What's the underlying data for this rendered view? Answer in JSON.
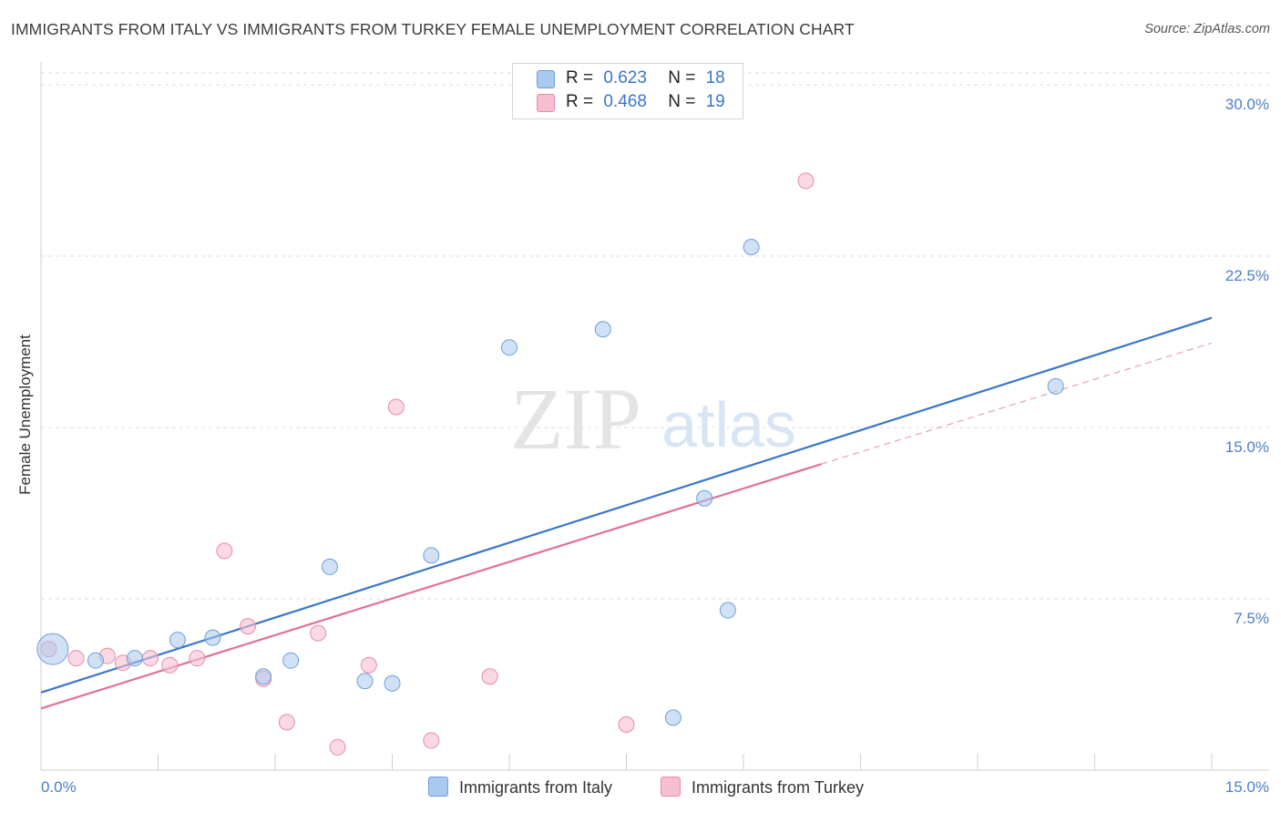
{
  "title": "IMMIGRANTS FROM ITALY VS IMMIGRANTS FROM TURKEY FEMALE UNEMPLOYMENT CORRELATION CHART",
  "source": "Source: ZipAtlas.com",
  "watermark": {
    "zip": "ZIP",
    "atlas": "atlas"
  },
  "legend": {
    "italy": {
      "r_label": "R =",
      "r_value": "0.623",
      "n_label": "N =",
      "n_value": "18"
    },
    "turkey": {
      "r_label": "R =",
      "r_value": "0.468",
      "n_label": "N =",
      "n_value": "19"
    }
  },
  "colors": {
    "italy_fill": "#a9c9ef",
    "italy_stroke": "#6d9fdc",
    "italy_line": "#3a76c9",
    "turkey_fill": "#f6bfd0",
    "turkey_stroke": "#e98aa8",
    "turkey_line": "#e0709a",
    "axis_label": "#4a7fc7",
    "grid": "#dcdcdc"
  },
  "chart_data": {
    "type": "scatter",
    "title": "IMMIGRANTS FROM ITALY VS IMMIGRANTS FROM TURKEY FEMALE UNEMPLOYMENT CORRELATION CHART",
    "xlabel": "",
    "ylabel": "Female Unemployment",
    "xlim": [
      0,
      15
    ],
    "ylim": [
      0,
      31
    ],
    "x_ticks": [
      0,
      15
    ],
    "x_tick_labels": [
      "0.0%",
      "15.0%"
    ],
    "y_ticks": [
      7.5,
      15,
      22.5,
      30
    ],
    "y_tick_labels": [
      "7.5%",
      "15.0%",
      "22.5%",
      "30.0%"
    ],
    "grid": true,
    "legend_position": "top-center",
    "series": [
      {
        "name": "Immigrants from Italy",
        "r": 0.623,
        "n": 18,
        "points": [
          {
            "x": 0.15,
            "y": 5.3,
            "big": true
          },
          {
            "x": 0.7,
            "y": 4.8
          },
          {
            "x": 1.2,
            "y": 4.9
          },
          {
            "x": 1.75,
            "y": 5.7
          },
          {
            "x": 2.2,
            "y": 5.8
          },
          {
            "x": 2.85,
            "y": 4.1
          },
          {
            "x": 3.2,
            "y": 4.8
          },
          {
            "x": 3.7,
            "y": 8.9
          },
          {
            "x": 4.15,
            "y": 3.9
          },
          {
            "x": 4.5,
            "y": 3.8
          },
          {
            "x": 5.0,
            "y": 9.4
          },
          {
            "x": 6.0,
            "y": 18.5
          },
          {
            "x": 7.2,
            "y": 19.3
          },
          {
            "x": 8.1,
            "y": 2.3
          },
          {
            "x": 8.5,
            "y": 11.9
          },
          {
            "x": 8.8,
            "y": 7.0
          },
          {
            "x": 9.1,
            "y": 22.9
          },
          {
            "x": 13.0,
            "y": 16.8
          }
        ],
        "trend": {
          "x": [
            0.0,
            15.0
          ],
          "y": [
            3.4,
            19.8
          ]
        }
      },
      {
        "name": "Immigrants from Turkey",
        "r": 0.468,
        "n": 19,
        "points": [
          {
            "x": 0.1,
            "y": 5.3
          },
          {
            "x": 0.45,
            "y": 4.9
          },
          {
            "x": 0.85,
            "y": 5.0
          },
          {
            "x": 1.05,
            "y": 4.7
          },
          {
            "x": 1.4,
            "y": 4.9
          },
          {
            "x": 1.65,
            "y": 4.6
          },
          {
            "x": 2.0,
            "y": 4.9
          },
          {
            "x": 2.35,
            "y": 9.6
          },
          {
            "x": 2.65,
            "y": 6.3
          },
          {
            "x": 2.85,
            "y": 4.0
          },
          {
            "x": 3.15,
            "y": 2.1
          },
          {
            "x": 3.55,
            "y": 6.0
          },
          {
            "x": 3.8,
            "y": 1.0
          },
          {
            "x": 4.2,
            "y": 4.6
          },
          {
            "x": 4.55,
            "y": 15.9
          },
          {
            "x": 5.0,
            "y": 1.3
          },
          {
            "x": 5.75,
            "y": 4.1
          },
          {
            "x": 7.5,
            "y": 2.0
          },
          {
            "x": 9.8,
            "y": 25.8
          }
        ],
        "trend": {
          "x": [
            0.0,
            10.0
          ],
          "y": [
            2.7,
            13.4
          ]
        },
        "trend_extension": {
          "x": [
            10.0,
            15.0
          ],
          "y": [
            13.4,
            18.7
          ]
        }
      }
    ]
  }
}
